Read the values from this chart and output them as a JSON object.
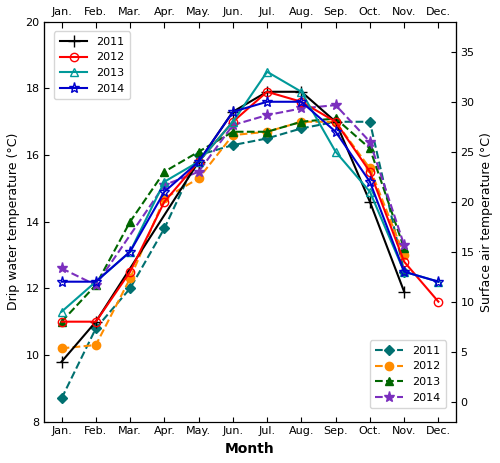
{
  "months": [
    1,
    2,
    3,
    4,
    5,
    6,
    7,
    8,
    9,
    10,
    11,
    12
  ],
  "month_labels": [
    "Jan.",
    "Feb.",
    "Mar.",
    "Apr.",
    "May.",
    "Jun.",
    "Jul.",
    "Aug.",
    "Sep.",
    "Oct.",
    "Nov.",
    "Dec."
  ],
  "air_2011_x": [
    1,
    2,
    5,
    6,
    7,
    8,
    9,
    10,
    11
  ],
  "air_2011_y": [
    4,
    8,
    24,
    29,
    31,
    31,
    28,
    20,
    11
  ],
  "air_2012_x": [
    1,
    2,
    3,
    4,
    5,
    6,
    7,
    8,
    9,
    10,
    11,
    12
  ],
  "air_2012_y": [
    8,
    8,
    13,
    20,
    24,
    28,
    31,
    30,
    28,
    23,
    14,
    10
  ],
  "air_2013_x": [
    1,
    3,
    4,
    5,
    6,
    7,
    8,
    9,
    10,
    11,
    12
  ],
  "air_2013_y": [
    9,
    15,
    22,
    24,
    28,
    33,
    31,
    25,
    21,
    13,
    12
  ],
  "air_2014_x": [
    1,
    2,
    3,
    4,
    5,
    6,
    7,
    8,
    9,
    10,
    11,
    12
  ],
  "air_2014_y": [
    12,
    12,
    15,
    21,
    24,
    29,
    30,
    30,
    27,
    22,
    13,
    12
  ],
  "drip_2011_x": [
    1,
    2,
    3,
    4,
    5,
    6,
    7,
    8,
    9,
    10,
    11
  ],
  "drip_2011_y": [
    8.7,
    10.8,
    12.0,
    13.8,
    16.0,
    16.3,
    16.5,
    16.8,
    17.0,
    17.0,
    12.5
  ],
  "drip_2012_x": [
    1,
    2,
    3,
    4,
    5,
    6,
    7,
    8,
    9,
    10,
    11
  ],
  "drip_2012_y": [
    10.2,
    10.3,
    12.3,
    14.7,
    15.3,
    16.6,
    16.7,
    17.0,
    17.0,
    15.6,
    13.0
  ],
  "drip_2013_x": [
    1,
    2,
    3,
    4,
    5,
    6,
    7,
    8,
    9,
    10,
    11
  ],
  "drip_2013_y": [
    11.0,
    12.1,
    14.0,
    15.5,
    16.1,
    16.7,
    16.7,
    17.0,
    17.1,
    16.2,
    13.2
  ],
  "drip_2014_x": [
    1,
    2,
    4,
    5,
    6,
    7,
    8,
    9,
    10,
    11
  ],
  "drip_2014_y": [
    12.6,
    12.1,
    15.1,
    15.5,
    16.9,
    17.2,
    17.4,
    17.5,
    16.4,
    13.3
  ],
  "air_color_2011": "#000000",
  "air_color_2012": "#ff0000",
  "air_color_2013": "#009999",
  "air_color_2014": "#0000cc",
  "drip_color_2011": "#007070",
  "drip_color_2012": "#ff8c00",
  "drip_color_2013": "#006600",
  "drip_color_2014": "#7b2fbe",
  "ylabel_left": "Drip water temperature (°C)",
  "ylabel_right": "Surface air temperature (°C)",
  "xlabel": "Month",
  "ylim_left": [
    8,
    20
  ],
  "ylim_right": [
    -2,
    38
  ]
}
